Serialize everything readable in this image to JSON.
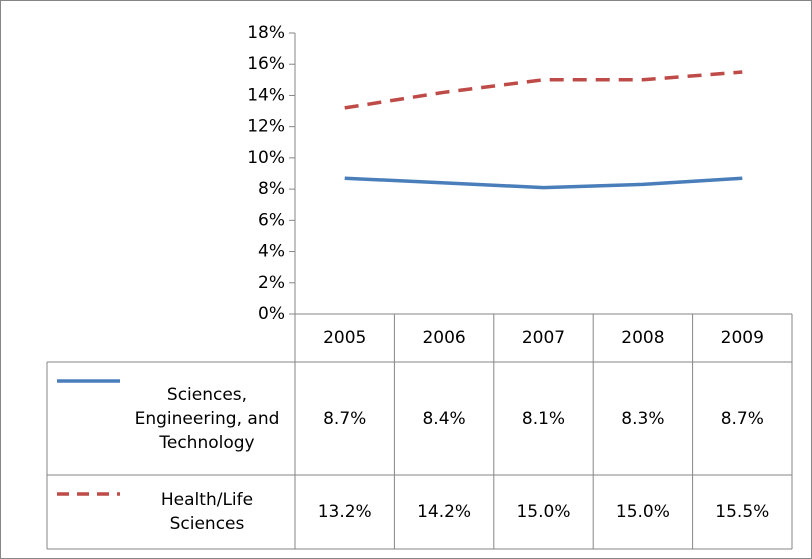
{
  "chart_data": {
    "type": "line",
    "categories": [
      "2005",
      "2006",
      "2007",
      "2008",
      "2009"
    ],
    "series": [
      {
        "name": "Sciences, Engineering, and Technology",
        "color": "#4a7ebb",
        "dashed": false,
        "values": [
          8.7,
          8.4,
          8.1,
          8.3,
          8.7
        ],
        "value_labels": [
          "8.7%",
          "8.4%",
          "8.1%",
          "8.3%",
          "8.7%"
        ]
      },
      {
        "name": "Health/Life Sciences",
        "color": "#be4b48",
        "dashed": true,
        "values": [
          13.2,
          14.2,
          15.0,
          15.0,
          15.5
        ],
        "value_labels": [
          "13.2%",
          "14.2%",
          "15.0%",
          "15.0%",
          "15.5%"
        ]
      }
    ],
    "ylim": [
      0,
      18
    ],
    "yticks": [
      {
        "value": 0,
        "label": "0%"
      },
      {
        "value": 2,
        "label": "2%"
      },
      {
        "value": 4,
        "label": "4%"
      },
      {
        "value": 6,
        "label": "6%"
      },
      {
        "value": 8,
        "label": "8%"
      },
      {
        "value": 10,
        "label": "10%"
      },
      {
        "value": 12,
        "label": "12%"
      },
      {
        "value": 14,
        "label": "14%"
      },
      {
        "value": 16,
        "label": "16%"
      },
      {
        "value": 18,
        "label": "18%"
      }
    ],
    "grid": false,
    "data_table": true
  }
}
